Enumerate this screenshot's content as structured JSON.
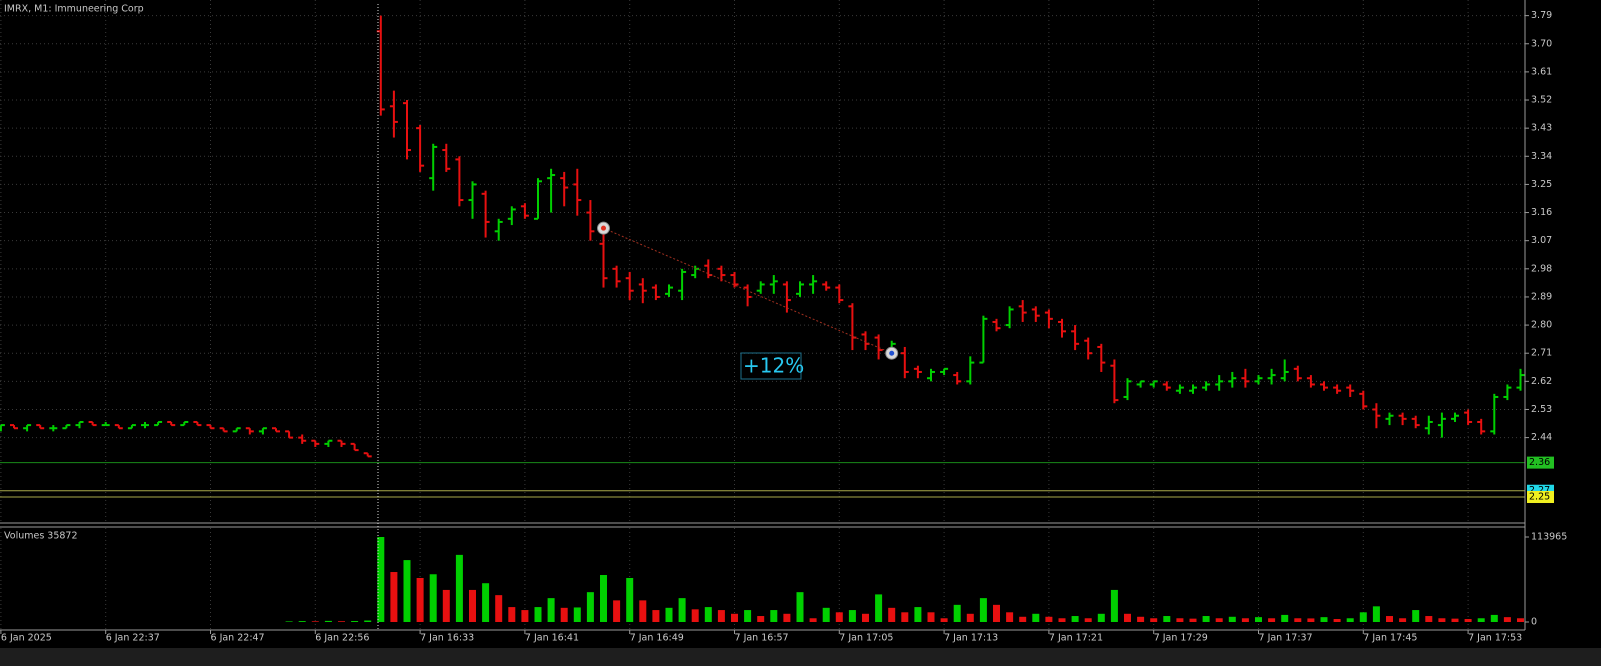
{
  "chart_data": {
    "type": "ohlc",
    "title": "IMRX, M1:  Immuneering Corp",
    "categories": [
      "6 Jan 2025",
      null,
      null,
      null,
      null,
      null,
      null,
      null,
      "6 Jan 22:37",
      null,
      null,
      null,
      null,
      null,
      null,
      null,
      "6 Jan 22:47",
      null,
      null,
      null,
      null,
      null,
      null,
      null,
      "6 Jan 22:56",
      null,
      null,
      null,
      null,
      null,
      null,
      null,
      "7 Jan 16:33",
      null,
      null,
      null,
      null,
      null,
      null,
      null,
      "7 Jan 16:41",
      null,
      null,
      null,
      null,
      null,
      null,
      null,
      "7 Jan 16:49",
      null,
      null,
      null,
      null,
      null,
      null,
      null,
      "7 Jan 16:57",
      null,
      null,
      null,
      null,
      null,
      null,
      null,
      "7 Jan 17:05",
      null,
      null,
      null,
      null,
      null,
      null,
      null,
      "7 Jan 17:13",
      null,
      null,
      null,
      null,
      null,
      null,
      null,
      "7 Jan 17:21",
      null,
      null,
      null,
      null,
      null,
      null,
      null,
      "7 Jan 17:29",
      null,
      null,
      null,
      null,
      null,
      null,
      null,
      "7 Jan 17:37",
      null,
      null,
      null,
      null,
      null,
      null,
      null,
      "7 Jan 17:45",
      null,
      null,
      null,
      null,
      null,
      null,
      null,
      "7 Jan 17:53",
      null,
      null,
      null,
      null
    ],
    "open": [
      2.47,
      2.48,
      2.47,
      2.48,
      2.47,
      2.47,
      2.48,
      2.49,
      2.48,
      2.48,
      2.47,
      2.48,
      2.48,
      2.49,
      2.48,
      2.49,
      2.48,
      2.47,
      2.46,
      2.47,
      2.46,
      2.47,
      2.46,
      2.44,
      2.43,
      2.42,
      2.43,
      2.42,
      2.39,
      3.74,
      3.5,
      3.51,
      3.43,
      3.27,
      3.36,
      3.33,
      3.2,
      3.22,
      3.1,
      3.14,
      3.18,
      3.14,
      3.27,
      3.27,
      3.25,
      3.16,
      3.06,
      2.98,
      2.95,
      2.93,
      2.92,
      2.9,
      2.91,
      2.96,
      2.99,
      2.98,
      2.96,
      2.92,
      2.91,
      2.93,
      2.93,
      2.9,
      2.93,
      2.93,
      2.92,
      2.86,
      2.77,
      2.76,
      2.71,
      2.71,
      2.66,
      2.63,
      2.65,
      2.64,
      2.62,
      2.68,
      2.81,
      2.8,
      2.86,
      2.85,
      2.84,
      2.81,
      2.78,
      2.75,
      2.73,
      2.67,
      2.57,
      2.61,
      2.61,
      2.61,
      2.59,
      2.59,
      2.6,
      2.61,
      2.62,
      2.63,
      2.62,
      2.63,
      2.63,
      2.66,
      2.63,
      2.61,
      2.6,
      2.6,
      2.58,
      2.53,
      2.5,
      2.51,
      2.5,
      2.47,
      2.48,
      2.5,
      2.52,
      2.49,
      2.46,
      2.57,
      2.6
    ],
    "high": [
      2.48,
      2.48,
      2.48,
      2.48,
      2.48,
      2.48,
      2.49,
      2.49,
      2.49,
      2.48,
      2.48,
      2.49,
      2.49,
      2.49,
      2.49,
      2.49,
      2.48,
      2.47,
      2.47,
      2.47,
      2.47,
      2.47,
      2.46,
      2.45,
      2.43,
      2.43,
      2.43,
      2.42,
      2.39,
      3.79,
      3.55,
      3.52,
      3.44,
      3.38,
      3.38,
      3.34,
      3.26,
      3.23,
      3.14,
      3.18,
      3.19,
      3.27,
      3.3,
      3.29,
      3.3,
      3.2,
      3.1,
      2.99,
      2.97,
      2.95,
      2.93,
      2.93,
      2.98,
      2.99,
      3.01,
      2.99,
      2.97,
      2.93,
      2.94,
      2.96,
      2.94,
      2.94,
      2.96,
      2.94,
      2.93,
      2.87,
      2.78,
      2.77,
      2.75,
      2.73,
      2.67,
      2.66,
      2.66,
      2.65,
      2.7,
      2.83,
      2.82,
      2.86,
      2.88,
      2.86,
      2.85,
      2.82,
      2.8,
      2.76,
      2.74,
      2.69,
      2.63,
      2.62,
      2.62,
      2.62,
      2.61,
      2.61,
      2.62,
      2.64,
      2.65,
      2.66,
      2.64,
      2.66,
      2.69,
      2.67,
      2.64,
      2.62,
      2.61,
      2.61,
      2.59,
      2.55,
      2.52,
      2.52,
      2.51,
      2.51,
      2.52,
      2.52,
      2.53,
      2.5,
      2.58,
      2.61,
      2.66
    ],
    "low": [
      2.46,
      2.47,
      2.46,
      2.47,
      2.46,
      2.47,
      2.47,
      2.48,
      2.48,
      2.47,
      2.47,
      2.47,
      2.48,
      2.48,
      2.48,
      2.48,
      2.47,
      2.46,
      2.46,
      2.45,
      2.45,
      2.46,
      2.44,
      2.42,
      2.41,
      2.41,
      2.41,
      2.4,
      2.38,
      3.47,
      3.4,
      3.33,
      3.29,
      3.23,
      3.29,
      3.18,
      3.14,
      3.08,
      3.07,
      3.12,
      3.14,
      3.14,
      3.16,
      3.18,
      3.15,
      3.07,
      2.92,
      2.92,
      2.88,
      2.87,
      2.88,
      2.89,
      2.88,
      2.95,
      2.95,
      2.94,
      2.92,
      2.86,
      2.9,
      2.9,
      2.84,
      2.89,
      2.9,
      2.91,
      2.87,
      2.72,
      2.72,
      2.69,
      2.7,
      2.63,
      2.63,
      2.62,
      2.64,
      2.61,
      2.61,
      2.68,
      2.78,
      2.79,
      2.81,
      2.81,
      2.79,
      2.76,
      2.72,
      2.69,
      2.65,
      2.55,
      2.56,
      2.6,
      2.6,
      2.59,
      2.58,
      2.58,
      2.59,
      2.59,
      2.6,
      2.6,
      2.61,
      2.61,
      2.62,
      2.62,
      2.6,
      2.59,
      2.58,
      2.57,
      2.53,
      2.47,
      2.48,
      2.48,
      2.47,
      2.45,
      2.44,
      2.49,
      2.48,
      2.45,
      2.45,
      2.56,
      2.59
    ],
    "close": [
      2.48,
      2.47,
      2.48,
      2.47,
      2.47,
      2.48,
      2.49,
      2.48,
      2.48,
      2.47,
      2.48,
      2.48,
      2.49,
      2.48,
      2.49,
      2.48,
      2.47,
      2.46,
      2.47,
      2.46,
      2.47,
      2.46,
      2.44,
      2.43,
      2.42,
      2.43,
      2.42,
      2.4,
      2.38,
      3.49,
      3.45,
      3.36,
      3.31,
      3.37,
      3.3,
      3.2,
      3.25,
      3.13,
      3.13,
      3.17,
      3.15,
      3.26,
      3.28,
      3.24,
      3.2,
      3.1,
      2.95,
      2.94,
      2.91,
      2.91,
      2.89,
      2.92,
      2.97,
      2.98,
      2.96,
      2.96,
      2.93,
      2.89,
      2.93,
      2.94,
      2.88,
      2.93,
      2.94,
      2.92,
      2.88,
      2.76,
      2.74,
      2.72,
      2.74,
      2.65,
      2.65,
      2.65,
      2.66,
      2.62,
      2.68,
      2.82,
      2.79,
      2.85,
      2.84,
      2.83,
      2.82,
      2.78,
      2.74,
      2.71,
      2.68,
      2.56,
      2.62,
      2.62,
      2.62,
      2.6,
      2.6,
      2.6,
      2.61,
      2.62,
      2.63,
      2.62,
      2.63,
      2.64,
      2.65,
      2.63,
      2.61,
      2.6,
      2.59,
      2.59,
      2.54,
      2.51,
      2.51,
      2.5,
      2.48,
      2.49,
      2.5,
      2.51,
      2.49,
      2.46,
      2.57,
      2.6,
      2.64
    ],
    "up_color": "#00d000",
    "down_color": "#e81010",
    "ylim": [
      2.17,
      3.84
    ],
    "yticks": [
      3.79,
      {
        "value": 3.7,
        "label": "3.70"
      },
      3.61,
      3.52,
      3.43,
      3.34,
      3.25,
      3.16,
      3.07,
      2.98,
      2.89,
      {
        "value": 2.8,
        "label": "2.80"
      },
      2.71,
      2.62,
      2.53,
      2.44
    ],
    "grid": true,
    "levels": [
      {
        "value": 2.36,
        "color": "#1a8a1a",
        "label_color": "#22c022"
      },
      {
        "value": 2.27,
        "color": "#a8a84a",
        "label_color": "#20d8e8"
      },
      {
        "value": 2.25,
        "color": "#a8a84a",
        "label_color": "#f0f020"
      }
    ],
    "trendline": {
      "x": [
        46,
        68
      ],
      "y": [
        3.11,
        2.71
      ],
      "color": "#a03020"
    },
    "annotation": "+12%",
    "volume": {
      "title": "Volumes 35872",
      "values": [
        0,
        0,
        0,
        0,
        0,
        0,
        0,
        0,
        0,
        0,
        0,
        0,
        0,
        0,
        0,
        0,
        0,
        0,
        0,
        0,
        0,
        0,
        800,
        1200,
        900,
        1500,
        1000,
        1300,
        2000,
        113965,
        67000,
        83000,
        59000,
        64000,
        43000,
        90000,
        43000,
        52000,
        36000,
        20000,
        16000,
        20000,
        32000,
        19000,
        19500,
        40000,
        63000,
        29000,
        59000,
        29000,
        16000,
        19000,
        32000,
        17000,
        20000,
        16000,
        11000,
        16000,
        8000,
        16000,
        11000,
        40000,
        5000,
        19000,
        13000,
        16000,
        11000,
        37000,
        19000,
        13000,
        20000,
        13000,
        5000,
        23000,
        11000,
        32000,
        23000,
        13000,
        7000,
        11000,
        7000,
        5000,
        8000,
        5000,
        11000,
        43000,
        11000,
        7000,
        5000,
        8000,
        5000,
        4500,
        8000,
        5000,
        7000,
        5000,
        6500,
        5000,
        9500,
        5000,
        4800,
        6500,
        4000,
        5000,
        13000,
        21000,
        8000,
        5000,
        16000,
        8000,
        5000,
        4500,
        4000,
        5000,
        9500,
        6500,
        5000
      ],
      "ylim": [
        0,
        113965
      ],
      "yticks": [
        0,
        113965
      ]
    }
  }
}
